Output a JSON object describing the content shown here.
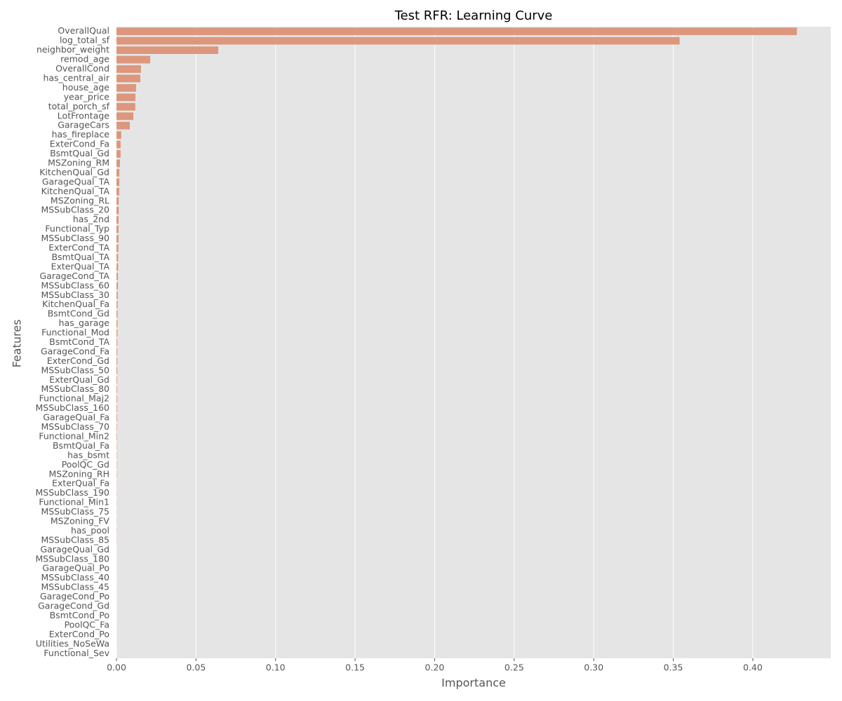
{
  "chart_data": {
    "type": "barh",
    "title": "Test RFR: Learning Curve",
    "x_label": "Importance",
    "y_label": "Features",
    "categories": [
      "OverallQual",
      "log_total_sf",
      "neighbor_weight",
      "remod_age",
      "OverallCond",
      "has_central_air",
      "house_age",
      "year_price",
      "total_porch_sf",
      "LotFrontage",
      "GarageCars",
      "has_fireplace",
      "ExterCond_Fa",
      "BsmtQual_Gd",
      "MSZoning_RM",
      "KitchenQual_Gd",
      "GarageQual_TA",
      "KitchenQual_TA",
      "MSZoning_RL",
      "MSSubClass_20",
      "has_2nd",
      "Functional_Typ",
      "MSSubClass_90",
      "ExterCond_TA",
      "BsmtQual_TA",
      "ExterQual_TA",
      "GarageCond_TA",
      "MSSubClass_60",
      "MSSubClass_30",
      "KitchenQual_Fa",
      "BsmtCond_Gd",
      "has_garage",
      "Functional_Mod",
      "BsmtCond_TA",
      "GarageCond_Fa",
      "ExterCond_Gd",
      "MSSubClass_50",
      "ExterQual_Gd",
      "MSSubClass_80",
      "Functional_Maj2",
      "MSSubClass_160",
      "GarageQual_Fa",
      "MSSubClass_70",
      "Functional_Min2",
      "BsmtQual_Fa",
      "has_bsmt",
      "PoolQC_Gd",
      "MSZoning_RH",
      "ExterQual_Fa",
      "MSSubClass_190",
      "Functional_Min1",
      "MSSubClass_75",
      "MSZoning_FV",
      "has_pool",
      "MSSubClass_85",
      "GarageQual_Gd",
      "MSSubClass_180",
      "GarageQual_Po",
      "MSSubClass_40",
      "MSSubClass_45",
      "GarageCond_Po",
      "GarageCond_Gd",
      "BsmtCond_Po",
      "PoolQC_Fa",
      "ExterCond_Po",
      "Utilities_NoSeWa",
      "Functional_Sev"
    ],
    "values": [
      0.4277,
      0.354,
      0.064,
      0.0212,
      0.0154,
      0.015,
      0.0123,
      0.0119,
      0.0118,
      0.0106,
      0.0084,
      0.003,
      0.0026,
      0.0026,
      0.0022,
      0.0018,
      0.0018,
      0.0017,
      0.0014,
      0.0014,
      0.0013,
      0.0013,
      0.0013,
      0.0012,
      0.001,
      0.001,
      0.0009,
      0.0009,
      0.0008,
      0.0007,
      0.0007,
      0.0006,
      0.0006,
      0.0005,
      0.0005,
      0.0005,
      0.0005,
      0.0004,
      0.0004,
      0.0004,
      0.0004,
      0.0004,
      0.0003,
      0.0003,
      0.0002,
      0.0002,
      0.0002,
      0.0002,
      0.0001,
      0.0001,
      0.0001,
      0.0001,
      0.0001,
      0.0001,
      0.0001,
      5e-05,
      5e-05,
      5e-05,
      4e-05,
      3e-05,
      3e-05,
      2e-05,
      2e-05,
      1e-05,
      1e-05,
      1e-05,
      0
    ],
    "color": "#dc977d",
    "xlim": [
      0,
      0.449
    ],
    "xticks": [
      {
        "value": 0,
        "label": "0.00"
      },
      {
        "value": 0.05,
        "label": "0.05"
      },
      {
        "value": 0.1,
        "label": "0.10"
      },
      {
        "value": 0.15,
        "label": "0.15"
      },
      {
        "value": 0.2,
        "label": "0.20"
      },
      {
        "value": 0.25,
        "label": "0.25"
      },
      {
        "value": 0.3,
        "label": "0.30"
      },
      {
        "value": 0.35,
        "label": "0.35"
      },
      {
        "value": 0.4,
        "label": "0.40"
      }
    ],
    "grid": true
  }
}
